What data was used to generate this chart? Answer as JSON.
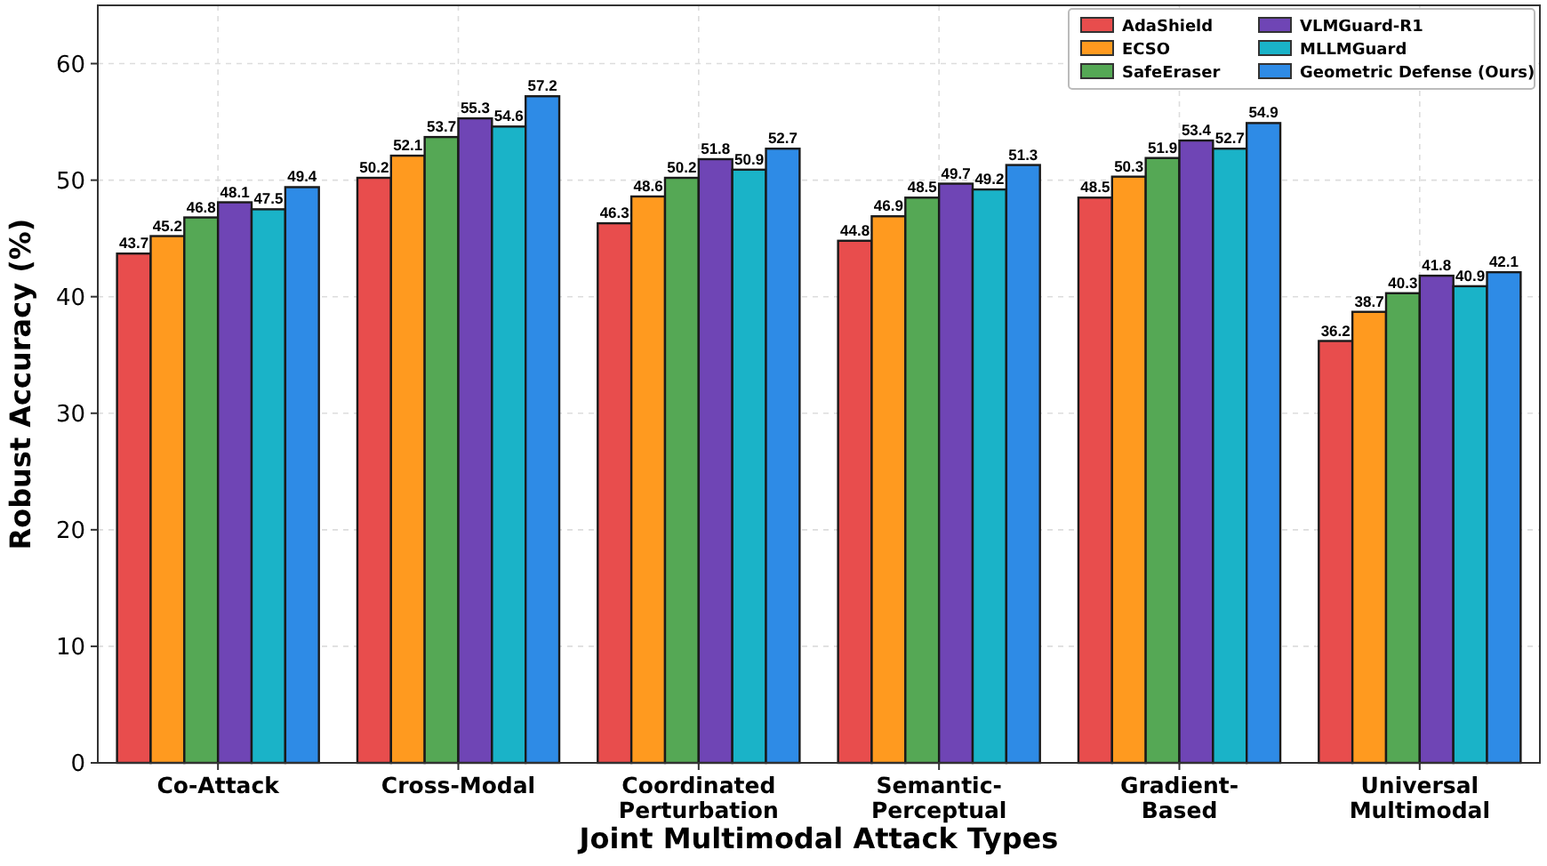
{
  "chart_data": {
    "type": "bar",
    "xlabel": "Joint Multimodal Attack Types",
    "ylabel": "Robust Accuracy (%)",
    "categories": [
      "Co-Attack",
      "Cross-Modal",
      "Coordinated\nPerturbation",
      "Semantic-\nPerceptual",
      "Gradient-\nBased",
      "Universal\nMultimodal"
    ],
    "series": [
      {
        "name": "AdaShield",
        "color": "#e84d4d",
        "values": [
          43.7,
          50.2,
          46.3,
          44.8,
          48.5,
          36.2
        ]
      },
      {
        "name": "ECSO",
        "color": "#ff9a1f",
        "values": [
          45.2,
          52.1,
          48.6,
          46.9,
          50.3,
          38.7
        ]
      },
      {
        "name": "SafeEraser",
        "color": "#55a855",
        "values": [
          46.8,
          53.7,
          50.2,
          48.5,
          51.9,
          40.3
        ]
      },
      {
        "name": "VLMGuard-R1",
        "color": "#6f45b5",
        "values": [
          48.1,
          55.3,
          51.8,
          49.7,
          53.4,
          41.8
        ]
      },
      {
        "name": "MLLMGuard",
        "color": "#1ab3c8",
        "values": [
          47.5,
          54.6,
          50.9,
          49.2,
          52.7,
          40.9
        ]
      },
      {
        "name": "Geometric Defense (Ours)",
        "color": "#2e8be6",
        "values": [
          49.4,
          57.2,
          52.7,
          51.3,
          54.9,
          42.1
        ]
      }
    ],
    "ylim": [
      0,
      65
    ],
    "yticks": [
      0,
      10,
      20,
      30,
      40,
      50,
      60
    ],
    "grid": true,
    "legend": "top right",
    "data_labels": true
  }
}
